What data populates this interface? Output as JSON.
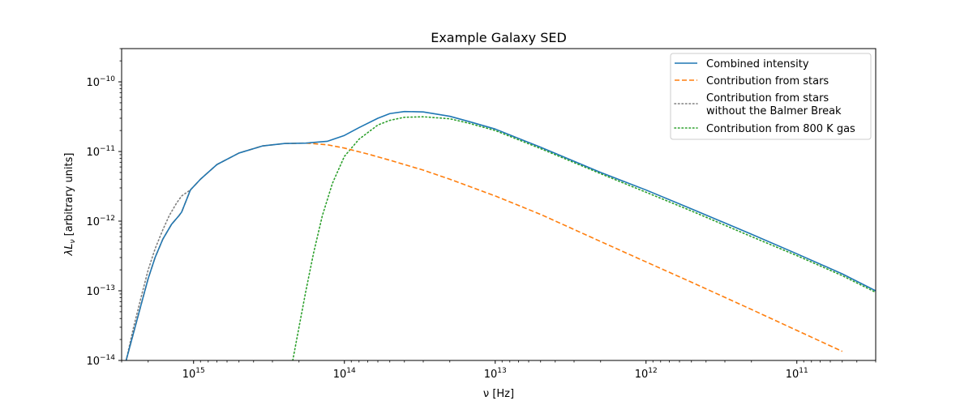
{
  "chart_data": {
    "type": "line",
    "title": "Example Galaxy SED",
    "xlabel": "ν [Hz]",
    "ylabel": "λL",
    "ylabel_sub": "ν",
    "ylabel_rest": " [arbitrary units]",
    "x_scale": "log",
    "y_scale": "log",
    "x_inverted": true,
    "xlim": [
      3000000000000000.0,
      30000000000.0
    ],
    "ylim": [
      1e-14,
      3e-10
    ],
    "x_ticks": [
      {
        "value": 1000000000000000.0,
        "base": "10",
        "exp": "15"
      },
      {
        "value": 100000000000000.0,
        "base": "10",
        "exp": "14"
      },
      {
        "value": 10000000000000.0,
        "base": "10",
        "exp": "13"
      },
      {
        "value": 1000000000000.0,
        "base": "10",
        "exp": "12"
      },
      {
        "value": 100000000000.0,
        "base": "10",
        "exp": "11"
      }
    ],
    "y_ticks": [
      {
        "value": 1e-14,
        "base": "10",
        "exp": "−14"
      },
      {
        "value": 1e-13,
        "base": "10",
        "exp": "−13"
      },
      {
        "value": 1e-12,
        "base": "10",
        "exp": "−12"
      },
      {
        "value": 1e-11,
        "base": "10",
        "exp": "−11"
      },
      {
        "value": 1e-10,
        "base": "10",
        "exp": "−10"
      }
    ],
    "legend_position": "top-right",
    "grid": false,
    "series": [
      {
        "name": "Combined intensity",
        "color": "#1f77b4",
        "style": "solid",
        "x": [
          2800000000000000.0,
          2500000000000000.0,
          2200000000000000.0,
          2000000000000000.0,
          1800000000000000.0,
          1600000000000000.0,
          1400000000000000.0,
          1250000000000000.0,
          1200000000000000.0,
          1050000000000000.0,
          900000000000000.0,
          700000000000000.0,
          500000000000000.0,
          350000000000000.0,
          250000000000000.0,
          180000000000000.0,
          130000000000000.0,
          100000000000000.0,
          80000000000000.0,
          60000000000000.0,
          50000000000000.0,
          40000000000000.0,
          30000000000000.0,
          20000000000000.0,
          15000000000000.0,
          10000000000000.0,
          5000000000000.0,
          2000000000000.0,
          1000000000000.0,
          500000000000.0,
          200000000000.0,
          100000000000.0,
          50000000000.0,
          30000000000.0
        ],
        "y": [
          1e-14,
          2.5e-14,
          7e-14,
          1.5e-13,
          3e-13,
          5.5e-13,
          9e-13,
          1.2e-12,
          1.35e-12,
          2.8e-12,
          4e-12,
          6.5e-12,
          9.5e-12,
          1.2e-11,
          1.3e-11,
          1.32e-11,
          1.4e-11,
          1.7e-11,
          2.2e-11,
          3e-11,
          3.5e-11,
          3.75e-11,
          3.7e-11,
          3.2e-11,
          2.7e-11,
          2.1e-11,
          1.15e-11,
          5e-12,
          2.8e-12,
          1.5e-12,
          6.5e-13,
          3.4e-13,
          1.75e-13,
          1e-13
        ]
      },
      {
        "name": "Contribution from stars",
        "color": "#ff7f0e",
        "style": "dashed",
        "x": [
          2800000000000000.0,
          2500000000000000.0,
          2200000000000000.0,
          2000000000000000.0,
          1800000000000000.0,
          1600000000000000.0,
          1400000000000000.0,
          1250000000000000.0,
          1200000000000000.0,
          1050000000000000.0,
          900000000000000.0,
          700000000000000.0,
          500000000000000.0,
          350000000000000.0,
          250000000000000.0,
          180000000000000.0,
          130000000000000.0,
          100000000000000.0,
          70000000000000.0,
          50000000000000.0,
          30000000000000.0,
          20000000000000.0,
          10000000000000.0,
          5000000000000.0,
          2000000000000.0,
          1000000000000.0,
          500000000000.0,
          200000000000.0,
          100000000000.0,
          50000000000.0
        ],
        "y": [
          1e-14,
          2.5e-14,
          7e-14,
          1.5e-13,
          3e-13,
          5.5e-13,
          9e-13,
          1.2e-12,
          1.35e-12,
          2.8e-12,
          4e-12,
          6.5e-12,
          9.5e-12,
          1.2e-11,
          1.3e-11,
          1.32e-11,
          1.25e-11,
          1.12e-11,
          9.2e-12,
          7.5e-12,
          5.4e-12,
          4e-12,
          2.3e-12,
          1.25e-12,
          5.1e-13,
          2.6e-13,
          1.33e-13,
          5.4e-14,
          2.7e-14,
          1.35e-14
        ]
      },
      {
        "name": "Contribution from stars\nwithout the Balmer Break",
        "color": "#7f7f7f",
        "style": "dotted-gray",
        "x": [
          2800000000000000.0,
          2500000000000000.0,
          2200000000000000.0,
          2000000000000000.0,
          1800000000000000.0,
          1600000000000000.0,
          1450000000000000.0,
          1300000000000000.0,
          1200000000000000.0,
          1050000000000000.0
        ],
        "y": [
          1e-14,
          3e-14,
          9e-14,
          2e-13,
          4e-13,
          7.5e-13,
          1.2e-12,
          1.8e-12,
          2.3e-12,
          2.8e-12
        ]
      },
      {
        "name": "Contribution from 800 K gas",
        "color": "#2ca02c",
        "style": "dotted",
        "x": [
          220000000000000.0,
          200000000000000.0,
          180000000000000.0,
          160000000000000.0,
          140000000000000.0,
          120000000000000.0,
          100000000000000.0,
          80000000000000.0,
          60000000000000.0,
          50000000000000.0,
          40000000000000.0,
          30000000000000.0,
          20000000000000.0,
          15000000000000.0,
          10000000000000.0,
          5000000000000.0,
          2000000000000.0,
          1000000000000.0,
          500000000000.0,
          200000000000.0,
          100000000000.0,
          50000000000.0,
          30000000000.0
        ],
        "y": [
          1e-14,
          3e-14,
          1e-13,
          3.5e-13,
          1.2e-12,
          3.5e-12,
          8.5e-12,
          1.5e-11,
          2.4e-11,
          2.8e-11,
          3.1e-11,
          3.15e-11,
          2.95e-11,
          2.55e-11,
          2e-11,
          1.1e-11,
          4.8e-12,
          2.6e-12,
          1.4e-12,
          6e-13,
          3.2e-13,
          1.65e-13,
          9.5e-14
        ]
      }
    ]
  }
}
